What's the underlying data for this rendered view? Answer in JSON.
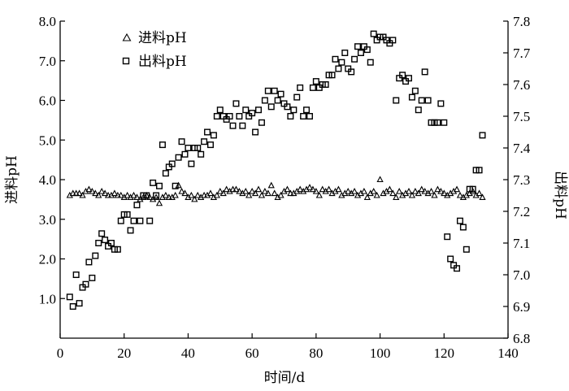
{
  "chart_data": {
    "type": "scatter",
    "title": "",
    "xlabel": "时间/d",
    "ylabel_left": "进料pH",
    "ylabel_right": "出料pH",
    "xlim": [
      0,
      140
    ],
    "ylim_left": [
      0.0,
      8.0
    ],
    "ylim_right": [
      6.8,
      7.8
    ],
    "x_ticks": [
      0,
      20,
      40,
      60,
      80,
      100,
      120,
      140
    ],
    "y_left_ticks": [
      "1.0",
      "2.0",
      "3.0",
      "4.0",
      "5.0",
      "6.0",
      "7.0",
      "8.0"
    ],
    "y_left_tick_values": [
      1,
      2,
      3,
      4,
      5,
      6,
      7,
      8
    ],
    "y_right_ticks": [
      "6.8",
      "6.9",
      "7.0",
      "7.1",
      "7.2",
      "7.3",
      "7.4",
      "7.5",
      "7.6",
      "7.7",
      "7.8"
    ],
    "y_right_tick_values": [
      6.8,
      6.9,
      7.0,
      7.1,
      7.2,
      7.3,
      7.4,
      7.5,
      7.6,
      7.7,
      7.8
    ],
    "legend_position": "top-left",
    "grid": false,
    "series": [
      {
        "name": "进料pH",
        "marker": "triangle",
        "axis": "left",
        "x": [
          3,
          4,
          5,
          6,
          7,
          8,
          9,
          10,
          11,
          12,
          13,
          14,
          15,
          16,
          17,
          18,
          19,
          20,
          21,
          22,
          23,
          24,
          25,
          26,
          27,
          28,
          29,
          30,
          31,
          32,
          33,
          34,
          35,
          36,
          37,
          38,
          39,
          40,
          41,
          42,
          43,
          44,
          45,
          46,
          47,
          48,
          49,
          50,
          51,
          52,
          53,
          54,
          55,
          56,
          57,
          58,
          59,
          60,
          61,
          62,
          63,
          64,
          65,
          66,
          67,
          68,
          69,
          70,
          71,
          72,
          73,
          74,
          75,
          76,
          77,
          78,
          79,
          80,
          81,
          82,
          83,
          84,
          85,
          86,
          87,
          88,
          89,
          90,
          91,
          92,
          93,
          94,
          95,
          96,
          97,
          98,
          99,
          100,
          101,
          102,
          103,
          104,
          105,
          106,
          107,
          108,
          109,
          110,
          111,
          112,
          113,
          114,
          115,
          116,
          117,
          118,
          119,
          120,
          121,
          122,
          123,
          124,
          125,
          126,
          127,
          128,
          129,
          130,
          131,
          132
        ],
        "y": [
          3.6,
          3.65,
          3.65,
          3.65,
          3.6,
          3.7,
          3.75,
          3.7,
          3.65,
          3.6,
          3.7,
          3.65,
          3.6,
          3.6,
          3.65,
          3.6,
          3.6,
          3.55,
          3.6,
          3.55,
          3.6,
          3.55,
          3.5,
          3.55,
          3.6,
          3.55,
          3.5,
          3.55,
          3.4,
          3.55,
          3.6,
          3.55,
          3.55,
          3.6,
          3.85,
          3.7,
          3.65,
          3.55,
          3.6,
          3.5,
          3.6,
          3.55,
          3.6,
          3.6,
          3.65,
          3.55,
          3.6,
          3.7,
          3.65,
          3.75,
          3.7,
          3.75,
          3.75,
          3.7,
          3.65,
          3.7,
          3.6,
          3.7,
          3.65,
          3.75,
          3.6,
          3.7,
          3.65,
          3.85,
          3.65,
          3.55,
          3.6,
          3.7,
          3.75,
          3.65,
          3.65,
          3.7,
          3.75,
          3.7,
          3.75,
          3.8,
          3.75,
          3.7,
          3.6,
          3.75,
          3.7,
          3.75,
          3.65,
          3.7,
          3.75,
          3.6,
          3.65,
          3.7,
          3.65,
          3.7,
          3.6,
          3.65,
          3.7,
          3.55,
          3.65,
          3.7,
          3.6,
          4.0,
          3.65,
          3.7,
          3.75,
          3.65,
          3.55,
          3.7,
          3.6,
          3.65,
          3.7,
          3.6,
          3.7,
          3.65,
          3.75,
          3.7,
          3.65,
          3.7,
          3.6,
          3.75,
          3.7,
          3.65,
          3.6,
          3.65,
          3.7,
          3.75,
          3.6,
          3.55,
          3.6,
          3.65,
          3.7,
          3.6,
          3.65,
          3.55
        ]
      },
      {
        "name": "出料pH",
        "marker": "square",
        "axis": "right",
        "x": [
          3,
          4,
          5,
          6,
          7,
          8,
          9,
          10,
          11,
          12,
          13,
          14,
          15,
          16,
          17,
          18,
          19,
          20,
          21,
          22,
          23,
          24,
          25,
          26,
          27,
          28,
          29,
          30,
          31,
          32,
          33,
          34,
          35,
          36,
          37,
          38,
          39,
          40,
          41,
          42,
          43,
          44,
          45,
          46,
          47,
          48,
          49,
          50,
          51,
          52,
          53,
          54,
          55,
          56,
          57,
          58,
          59,
          60,
          61,
          62,
          63,
          64,
          65,
          66,
          67,
          68,
          69,
          70,
          71,
          72,
          73,
          74,
          75,
          76,
          77,
          78,
          79,
          80,
          81,
          82,
          83,
          84,
          85,
          86,
          87,
          88,
          89,
          90,
          91,
          92,
          93,
          94,
          95,
          96,
          97,
          98,
          99,
          100,
          101,
          102,
          103,
          104,
          105,
          106,
          107,
          108,
          109,
          110,
          111,
          112,
          113,
          114,
          115,
          116,
          117,
          118,
          119,
          120,
          121,
          122,
          123,
          124,
          125,
          126,
          127,
          128,
          129,
          130,
          131,
          132
        ],
        "y": [
          6.93,
          6.9,
          7.0,
          6.91,
          6.96,
          6.97,
          7.04,
          6.99,
          7.06,
          7.1,
          7.13,
          7.11,
          7.09,
          7.1,
          7.08,
          7.08,
          7.17,
          7.19,
          7.19,
          7.14,
          7.17,
          7.22,
          7.17,
          7.25,
          7.25,
          7.17,
          7.29,
          7.25,
          7.28,
          7.41,
          7.32,
          7.34,
          7.35,
          7.28,
          7.37,
          7.42,
          7.38,
          7.4,
          7.35,
          7.4,
          7.4,
          7.38,
          7.42,
          7.45,
          7.41,
          7.44,
          7.5,
          7.52,
          7.5,
          7.49,
          7.5,
          7.47,
          7.54,
          7.5,
          7.47,
          7.52,
          7.5,
          7.51,
          7.45,
          7.52,
          7.48,
          7.55,
          7.58,
          7.53,
          7.58,
          7.55,
          7.57,
          7.54,
          7.53,
          7.5,
          7.52,
          7.56,
          7.59,
          7.5,
          7.52,
          7.5,
          7.59,
          7.61,
          7.59,
          7.6,
          7.6,
          7.63,
          7.63,
          7.68,
          7.65,
          7.67,
          7.7,
          7.65,
          7.64,
          7.68,
          7.72,
          7.7,
          7.72,
          7.71,
          7.67,
          7.76,
          7.74,
          7.75,
          7.75,
          7.74,
          7.73,
          7.74,
          7.55,
          7.62,
          7.63,
          7.61,
          7.62,
          7.56,
          7.58,
          7.52,
          7.55,
          7.64,
          7.55,
          7.48,
          7.48,
          7.48,
          7.54,
          7.48,
          7.12,
          7.05,
          7.03,
          7.02,
          7.17,
          7.15,
          7.08,
          7.27,
          7.27,
          7.33,
          7.33,
          7.44
        ]
      }
    ]
  }
}
